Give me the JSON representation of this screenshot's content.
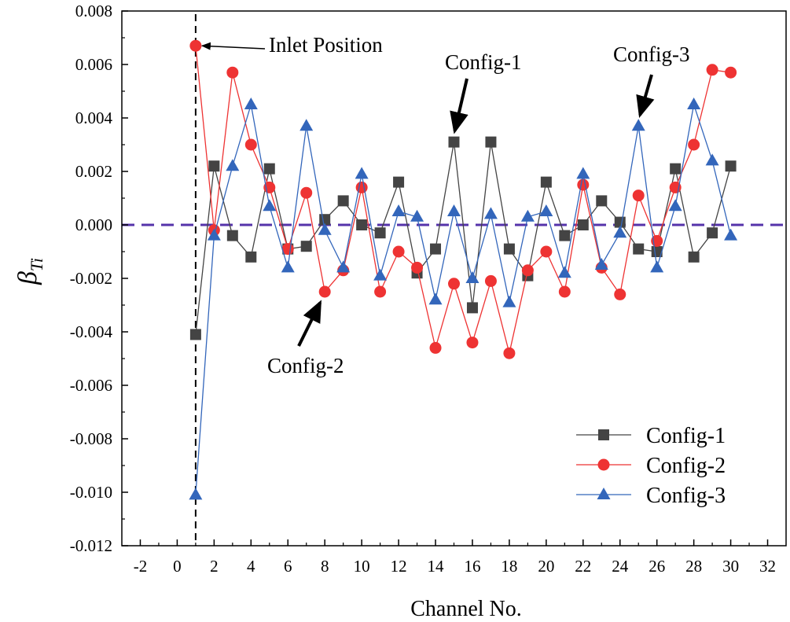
{
  "chart_data": {
    "type": "line",
    "title": "",
    "xlabel": "Channel No.",
    "ylabel_main": "β",
    "ylabel_sub": "Ti",
    "xlim": [
      -3,
      33
    ],
    "ylim": [
      -0.012,
      0.008
    ],
    "x_ticks": [
      -2,
      0,
      2,
      4,
      6,
      8,
      10,
      12,
      14,
      16,
      18,
      20,
      22,
      24,
      26,
      28,
      30,
      32
    ],
    "x_tick_labels": [
      "-2",
      "0",
      "2",
      "4",
      "6",
      "8",
      "10",
      "12",
      "14",
      "16",
      "18",
      "20",
      "22",
      "24",
      "26",
      "28",
      "30",
      "32"
    ],
    "y_ticks": [
      -0.012,
      -0.01,
      -0.008,
      -0.006,
      -0.004,
      -0.002,
      0,
      0.002,
      0.004,
      0.006,
      0.008
    ],
    "y_tick_labels": [
      "-0.012",
      "-0.010",
      "-0.008",
      "-0.006",
      "-0.004",
      "-0.002",
      "0.000",
      "0.002",
      "0.004",
      "0.006",
      "0.008"
    ],
    "x": [
      1,
      2,
      3,
      4,
      5,
      6,
      7,
      8,
      9,
      10,
      11,
      12,
      13,
      14,
      15,
      16,
      17,
      18,
      19,
      20,
      21,
      22,
      23,
      24,
      25,
      26,
      27,
      28,
      29,
      30
    ],
    "series": [
      {
        "name": "Config-1",
        "color": "#444444",
        "marker": "square",
        "values": [
          -0.0041,
          0.0022,
          -0.0004,
          -0.0012,
          0.0021,
          -0.0009,
          -0.0008,
          0.0002,
          0.0009,
          0.0,
          -0.0003,
          0.0016,
          -0.0018,
          -0.0009,
          0.0031,
          -0.0031,
          0.0031,
          -0.0009,
          -0.0019,
          0.0016,
          -0.0004,
          0.0,
          0.0009,
          0.0001,
          -0.0009,
          -0.001,
          0.0021,
          -0.0012,
          -0.0003,
          0.0022
        ]
      },
      {
        "name": "Config-2",
        "color": "#ee3333",
        "marker": "circle",
        "values": [
          0.0067,
          -0.0002,
          0.0057,
          0.003,
          0.0014,
          -0.0009,
          0.0012,
          -0.0025,
          -0.0017,
          0.0014,
          -0.0025,
          -0.001,
          -0.0016,
          -0.0046,
          -0.0022,
          -0.0044,
          -0.0021,
          -0.0048,
          -0.0017,
          -0.001,
          -0.0025,
          0.0015,
          -0.0016,
          -0.0026,
          0.0011,
          -0.0006,
          0.0014,
          0.003,
          0.0058,
          0.0057
        ]
      },
      {
        "name": "Config-3",
        "color": "#3366bb",
        "marker": "triangle",
        "values": [
          -0.0101,
          -0.0004,
          0.0022,
          0.0045,
          0.0007,
          -0.0016,
          0.0037,
          -0.0002,
          -0.0016,
          0.0019,
          -0.0019,
          0.0005,
          0.0003,
          -0.0028,
          0.0005,
          -0.002,
          0.0004,
          -0.0029,
          0.0003,
          0.0005,
          -0.0018,
          0.0019,
          -0.0015,
          -0.0003,
          0.0037,
          -0.0016,
          0.0007,
          0.0045,
          0.0024,
          -0.0004
        ]
      }
    ],
    "reference_lines": [
      {
        "orientation": "horizontal",
        "value": 0,
        "style": "dashed",
        "color": "#5533aa"
      },
      {
        "orientation": "vertical",
        "value": 1,
        "style": "dashed",
        "color": "#000000"
      }
    ],
    "annotations": [
      {
        "text": "Inlet Position",
        "target_x": 1,
        "target_y": 0.0067
      },
      {
        "text": "Config-1",
        "target_x": 15,
        "target_y": 0.0031
      },
      {
        "text": "Config-2",
        "target_x": 8,
        "target_y": -0.0025
      },
      {
        "text": "Config-3",
        "target_x": 25,
        "target_y": 0.0037
      }
    ],
    "legend": {
      "position": "bottom-right",
      "entries": [
        "Config-1",
        "Config-2",
        "Config-3"
      ]
    },
    "grid": false
  }
}
